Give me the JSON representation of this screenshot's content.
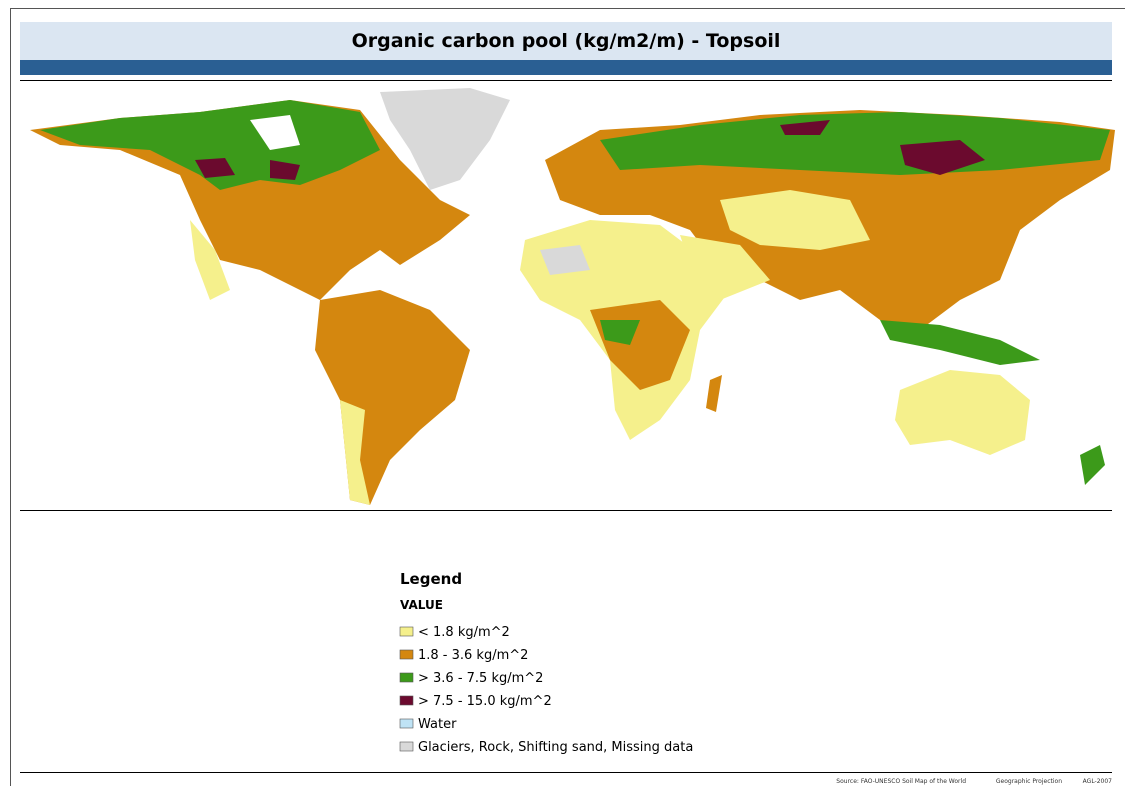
{
  "header": {
    "title": "Organic carbon pool  (kg/m2/m) - Topsoil"
  },
  "legend": {
    "title": "Legend",
    "subtitle": "VALUE",
    "items": [
      {
        "label": "< 1.8 kg/m^2",
        "color": "#f5f08c"
      },
      {
        "label": "1.8 - 3.6 kg/m^2",
        "color": "#d4870f"
      },
      {
        "label": "> 3.6 - 7.5 kg/m^2",
        "color": "#3c9a1a"
      },
      {
        "label": "> 7.5 - 15.0 kg/m^2",
        "color": "#6b0a2e"
      },
      {
        "label": "Water",
        "color": "#bfe3f5"
      },
      {
        "label": "Glaciers, Rock, Shifting sand, Missing data",
        "color": "#d9d9d9"
      }
    ]
  },
  "footer": {
    "source": "Source: FAO-UNESCO Soil Map of the World",
    "projection": "Geographic Projection",
    "credit": "AGL-2007"
  }
}
